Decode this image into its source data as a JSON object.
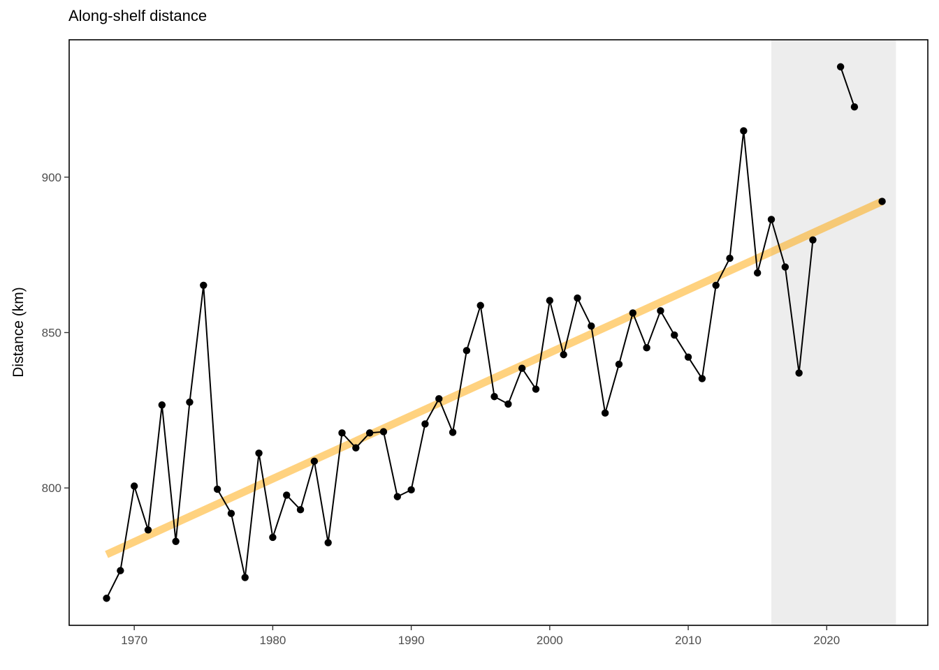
{
  "chart_data": {
    "type": "line",
    "title": "Along-shelf distance",
    "xlabel": "",
    "ylabel": "Distance (km)",
    "xlim": [
      1965.3,
      2027.3
    ],
    "ylim": [
      755.8,
      944.2
    ],
    "x_ticks": [
      1970,
      1980,
      1990,
      2000,
      2010,
      2020
    ],
    "y_ticks": [
      800,
      850,
      900
    ],
    "grid": false,
    "legend": "none",
    "shaded_region": {
      "x_start": 2016,
      "x_end": 2025,
      "color": "#ebebeb"
    },
    "series": [
      {
        "type": "line+points",
        "color": "#000000",
        "points": [
          [
            1968,
            764.5
          ],
          [
            1969,
            773.4
          ],
          [
            1970,
            800.6
          ],
          [
            1971,
            786.5
          ],
          [
            1972,
            826.7
          ],
          [
            1973,
            782.8
          ],
          [
            1974,
            827.6
          ],
          [
            1975,
            865.2
          ],
          [
            1976,
            799.6
          ],
          [
            1977,
            791.8
          ],
          [
            1978,
            771.2
          ],
          [
            1979,
            811.2
          ],
          [
            1980,
            784.1
          ],
          [
            1981,
            797.7
          ],
          [
            1982,
            793.0
          ],
          [
            1983,
            808.6
          ],
          [
            1984,
            782.4
          ],
          [
            1985,
            817.7
          ],
          [
            1986,
            812.9
          ],
          [
            1987,
            817.7
          ],
          [
            1988,
            818.1
          ],
          [
            1989,
            797.2
          ],
          [
            1990,
            799.4
          ],
          [
            1991,
            820.6
          ],
          [
            1992,
            828.7
          ],
          [
            1993,
            817.9
          ],
          [
            1994,
            844.2
          ],
          [
            1995,
            858.7
          ],
          [
            1996,
            829.4
          ],
          [
            1997,
            827.0
          ],
          [
            1998,
            838.5
          ],
          [
            1999,
            831.8
          ],
          [
            2000,
            860.3
          ],
          [
            2001,
            842.9
          ],
          [
            2002,
            861.1
          ],
          [
            2003,
            852.1
          ],
          [
            2004,
            824.1
          ],
          [
            2005,
            839.8
          ],
          [
            2006,
            856.3
          ],
          [
            2007,
            845.1
          ],
          [
            2008,
            857.0
          ],
          [
            2009,
            849.2
          ],
          [
            2010,
            842.1
          ],
          [
            2011,
            835.2
          ],
          [
            2012,
            865.2
          ],
          [
            2013,
            873.9
          ],
          [
            2014,
            914.9
          ],
          [
            2015,
            869.2
          ],
          [
            2016,
            886.4
          ],
          [
            2017,
            871.1
          ],
          [
            2018,
            837.0
          ],
          [
            2019,
            879.8
          ],
          null,
          [
            2021,
            935.5
          ],
          [
            2022,
            922.6
          ],
          null,
          [
            2024,
            892.2
          ]
        ]
      },
      {
        "type": "trend",
        "color": "#ffa500",
        "opacity": 0.5,
        "points": [
          [
            1968,
            778.6
          ],
          [
            2024,
            892.2
          ]
        ]
      }
    ]
  }
}
